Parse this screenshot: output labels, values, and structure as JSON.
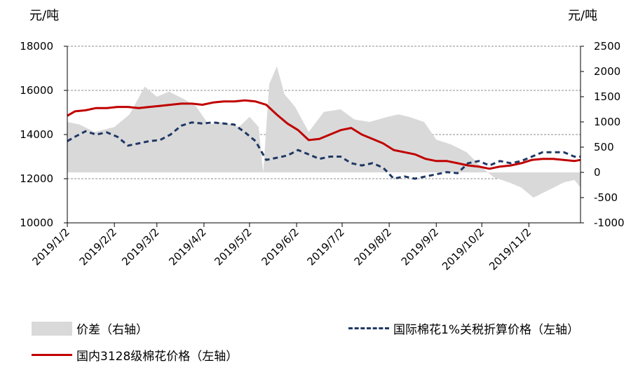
{
  "chart_data": {
    "type": "line",
    "y_left_unit": "元/吨",
    "y_right_unit": "元/吨",
    "ylim_left": [
      10000,
      18000
    ],
    "ylim_right": [
      -1000,
      2500
    ],
    "yticks_left": [
      "18000",
      "16000",
      "14000",
      "12000",
      "10000"
    ],
    "yticks_right": [
      "2500",
      "2000",
      "1500",
      "1000",
      "500",
      "0",
      "-500",
      "-1000"
    ],
    "xlim": [
      "2019-01-02",
      "2019-12-06"
    ],
    "x_tick_labels": [
      "2019/1/2",
      "2019/2/2",
      "2019/3/2",
      "2019/4/2",
      "2019/5/2",
      "2019/6/2",
      "2019/7/2",
      "2019/8/2",
      "2019/9/2",
      "2019/10/2",
      "2019/11/2"
    ],
    "grid": true,
    "legend_position": "bottom",
    "series": [
      {
        "name": "价差（右轴）",
        "axis": "right",
        "style": "area",
        "color": "#d9d9d9",
        "x": [
          "2019-01-02",
          "2019-01-10",
          "2019-01-20",
          "2019-02-02",
          "2019-02-12",
          "2019-02-22",
          "2019-03-02",
          "2019-03-10",
          "2019-03-20",
          "2019-03-28",
          "2019-04-05",
          "2019-04-15",
          "2019-04-25",
          "2019-05-02",
          "2019-05-08",
          "2019-05-11",
          "2019-05-15",
          "2019-05-20",
          "2019-05-25",
          "2019-06-01",
          "2019-06-10",
          "2019-06-20",
          "2019-07-01",
          "2019-07-10",
          "2019-07-20",
          "2019-08-01",
          "2019-08-08",
          "2019-08-15",
          "2019-08-25",
          "2019-09-02",
          "2019-09-12",
          "2019-09-22",
          "2019-10-02",
          "2019-10-10",
          "2019-10-20",
          "2019-10-28",
          "2019-11-05",
          "2019-11-15",
          "2019-11-25",
          "2019-12-02",
          "2019-12-06"
        ],
        "values": [
          1000,
          950,
          800,
          900,
          1150,
          1700,
          1500,
          1600,
          1450,
          1300,
          950,
          1000,
          900,
          1100,
          900,
          0,
          1750,
          2100,
          1550,
          1300,
          800,
          1200,
          1250,
          1050,
          1000,
          1100,
          1150,
          1100,
          1000,
          650,
          550,
          400,
          100,
          -100,
          -200,
          -300,
          -500,
          -350,
          -200,
          -150,
          -300
        ]
      },
      {
        "name": "国际棉花1%关税折算价格（左轴）",
        "axis": "left",
        "style": "dashed",
        "color": "#1f3864",
        "x": [
          "2019-01-02",
          "2019-01-07",
          "2019-01-14",
          "2019-01-21",
          "2019-01-28",
          "2019-02-04",
          "2019-02-11",
          "2019-02-18",
          "2019-02-25",
          "2019-03-04",
          "2019-03-11",
          "2019-03-18",
          "2019-03-25",
          "2019-04-01",
          "2019-04-08",
          "2019-04-15",
          "2019-04-22",
          "2019-04-29",
          "2019-05-06",
          "2019-05-13",
          "2019-05-20",
          "2019-05-27",
          "2019-06-03",
          "2019-06-10",
          "2019-06-17",
          "2019-06-24",
          "2019-07-01",
          "2019-07-08",
          "2019-07-15",
          "2019-07-22",
          "2019-07-29",
          "2019-08-05",
          "2019-08-12",
          "2019-08-19",
          "2019-08-26",
          "2019-09-02",
          "2019-09-09",
          "2019-09-16",
          "2019-09-23",
          "2019-09-30",
          "2019-10-07",
          "2019-10-14",
          "2019-10-21",
          "2019-10-28",
          "2019-11-04",
          "2019-11-11",
          "2019-11-18",
          "2019-11-25",
          "2019-12-02",
          "2019-12-06"
        ],
        "values": [
          13700,
          13900,
          14150,
          14000,
          14100,
          13900,
          13500,
          13600,
          13700,
          13750,
          14000,
          14400,
          14550,
          14500,
          14550,
          14500,
          14450,
          14100,
          13700,
          12850,
          12950,
          13050,
          13300,
          13100,
          12900,
          13000,
          13000,
          12700,
          12600,
          12700,
          12500,
          12000,
          12100,
          12000,
          12100,
          12200,
          12300,
          12250,
          12700,
          12800,
          12600,
          12800,
          12700,
          12800,
          13000,
          13200,
          13200,
          13200,
          13000,
          13000
        ]
      },
      {
        "name": "国内3128级棉花价格（左轴）",
        "axis": "left",
        "style": "solid",
        "color": "#c00000",
        "x": [
          "2019-01-02",
          "2019-01-07",
          "2019-01-14",
          "2019-01-21",
          "2019-01-28",
          "2019-02-04",
          "2019-02-11",
          "2019-02-18",
          "2019-02-25",
          "2019-03-04",
          "2019-03-11",
          "2019-03-18",
          "2019-03-25",
          "2019-04-01",
          "2019-04-08",
          "2019-04-15",
          "2019-04-22",
          "2019-04-29",
          "2019-05-06",
          "2019-05-13",
          "2019-05-20",
          "2019-05-27",
          "2019-06-03",
          "2019-06-10",
          "2019-06-17",
          "2019-06-24",
          "2019-07-01",
          "2019-07-08",
          "2019-07-15",
          "2019-07-22",
          "2019-07-29",
          "2019-08-05",
          "2019-08-12",
          "2019-08-19",
          "2019-08-26",
          "2019-09-02",
          "2019-09-09",
          "2019-09-16",
          "2019-09-23",
          "2019-09-30",
          "2019-10-07",
          "2019-10-14",
          "2019-10-21",
          "2019-10-28",
          "2019-11-04",
          "2019-11-11",
          "2019-11-18",
          "2019-11-25",
          "2019-12-02",
          "2019-12-06"
        ],
        "values": [
          14850,
          15050,
          15100,
          15200,
          15200,
          15250,
          15250,
          15200,
          15250,
          15300,
          15350,
          15400,
          15400,
          15350,
          15450,
          15500,
          15500,
          15550,
          15500,
          15350,
          14900,
          14500,
          14200,
          13750,
          13800,
          14000,
          14200,
          14300,
          14000,
          13800,
          13600,
          13300,
          13200,
          13100,
          12900,
          12800,
          12800,
          12700,
          12600,
          12550,
          12450,
          12550,
          12600,
          12700,
          12850,
          12900,
          12900,
          12850,
          12800,
          12850
        ]
      }
    ]
  }
}
